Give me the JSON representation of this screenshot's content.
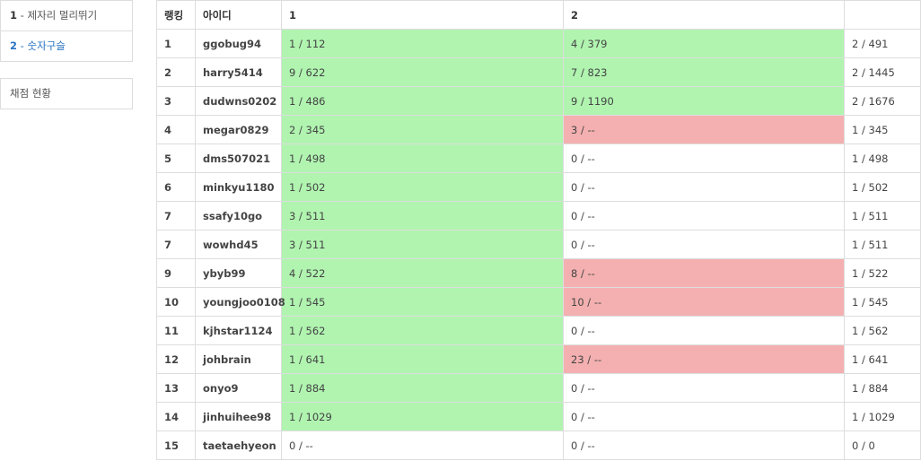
{
  "sidebar": {
    "problems": [
      {
        "num": "1",
        "sep": " - ",
        "title": "제자리 멀리뛰기",
        "active": false
      },
      {
        "num": "2",
        "sep": " - ",
        "title": "숫자구슬",
        "active": true
      }
    ],
    "status_label": "채점 현황"
  },
  "table": {
    "headers": {
      "rank": "랭킹",
      "user": "아이디",
      "p1": "1",
      "p2": "2",
      "total": ""
    },
    "rows": [
      {
        "rank": "1",
        "user": "ggobug94",
        "p1": "1 / 112",
        "p1_status": "solved",
        "p2": "4 / 379",
        "p2_status": "solved",
        "total": "2 / 491"
      },
      {
        "rank": "2",
        "user": "harry5414",
        "p1": "9 / 622",
        "p1_status": "solved",
        "p2": "7 / 823",
        "p2_status": "solved",
        "total": "2 / 1445"
      },
      {
        "rank": "3",
        "user": "dudwns0202",
        "p1": "1 / 486",
        "p1_status": "solved",
        "p2": "9 / 1190",
        "p2_status": "solved",
        "total": "2 / 1676"
      },
      {
        "rank": "4",
        "user": "megar0829",
        "p1": "2 / 345",
        "p1_status": "solved",
        "p2": "3 / --",
        "p2_status": "failed",
        "total": "1 / 345"
      },
      {
        "rank": "5",
        "user": "dms507021",
        "p1": "1 / 498",
        "p1_status": "solved",
        "p2": "0 / --",
        "p2_status": "none",
        "total": "1 / 498"
      },
      {
        "rank": "6",
        "user": "minkyu1180",
        "p1": "1 / 502",
        "p1_status": "solved",
        "p2": "0 / --",
        "p2_status": "none",
        "total": "1 / 502"
      },
      {
        "rank": "7",
        "user": "ssafy10go",
        "p1": "3 / 511",
        "p1_status": "solved",
        "p2": "0 / --",
        "p2_status": "none",
        "total": "1 / 511"
      },
      {
        "rank": "7",
        "user": "wowhd45",
        "p1": "3 / 511",
        "p1_status": "solved",
        "p2": "0 / --",
        "p2_status": "none",
        "total": "1 / 511"
      },
      {
        "rank": "9",
        "user": "ybyb99",
        "p1": "4 / 522",
        "p1_status": "solved",
        "p2": "8 / --",
        "p2_status": "failed",
        "total": "1 / 522"
      },
      {
        "rank": "10",
        "user": "youngjoo0108",
        "p1": "1 / 545",
        "p1_status": "solved",
        "p2": "10 / --",
        "p2_status": "failed",
        "total": "1 / 545"
      },
      {
        "rank": "11",
        "user": "kjhstar1124",
        "p1": "1 / 562",
        "p1_status": "solved",
        "p2": "0 / --",
        "p2_status": "none",
        "total": "1 / 562"
      },
      {
        "rank": "12",
        "user": "johbrain",
        "p1": "1 / 641",
        "p1_status": "solved",
        "p2": "23 / --",
        "p2_status": "failed",
        "total": "1 / 641"
      },
      {
        "rank": "13",
        "user": "onyo9",
        "p1": "1 / 884",
        "p1_status": "solved",
        "p2": "0 / --",
        "p2_status": "none",
        "total": "1 / 884"
      },
      {
        "rank": "14",
        "user": "jinhuihee98",
        "p1": "1 / 1029",
        "p1_status": "solved",
        "p2": "0 / --",
        "p2_status": "none",
        "total": "1 / 1029"
      },
      {
        "rank": "15",
        "user": "taetaehyeon",
        "p1": "0 / --",
        "p1_status": "none",
        "p2": "0 / --",
        "p2_status": "none",
        "total": "0 / 0"
      }
    ]
  },
  "colors": {
    "solved": "#b0f4b0",
    "failed": "#f4b0b0",
    "active_link": "#2a73c2"
  }
}
